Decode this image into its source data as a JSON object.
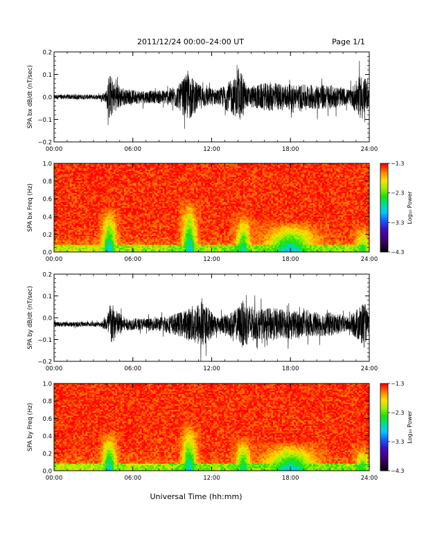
{
  "header": {
    "title": "2011/12/24  00:00–24:00 UT",
    "page": "Page 1/1"
  },
  "xlabel": "Universal Time (hh:mm)",
  "colors": {
    "trace": "#000000",
    "axis": "#000000",
    "colormap": [
      "#000000",
      "#2a0046",
      "#46008a",
      "#3c10c8",
      "#1060ff",
      "#00c8ff",
      "#00e090",
      "#20e000",
      "#a0f000",
      "#ffe000",
      "#ff8000",
      "#ff0000"
    ]
  },
  "chart_data": [
    {
      "type": "line",
      "ylabel": "SPA bx dB/dt (nT/sec)",
      "xlim": [
        0,
        24
      ],
      "x_ticks": [
        "00:00",
        "06:00",
        "12:00",
        "18:00",
        "24:00"
      ],
      "ylim": [
        -0.2,
        0.2
      ],
      "y_ticks": [
        "0.2",
        "0.1",
        "0.0",
        "−0.1",
        "−0.2"
      ],
      "y_tick_values": [
        0.2,
        0.1,
        0.0,
        -0.1,
        -0.2
      ],
      "baseline": 0.0,
      "activity": [
        {
          "t": 0,
          "amp": 0.02
        },
        {
          "t": 3.5,
          "amp": 0.02
        },
        {
          "t": 4.0,
          "amp": 0.05
        },
        {
          "t": 4.2,
          "amp": 0.2
        },
        {
          "t": 4.6,
          "amp": 0.12
        },
        {
          "t": 5.5,
          "amp": 0.06
        },
        {
          "t": 7.5,
          "amp": 0.05
        },
        {
          "t": 8.5,
          "amp": 0.06
        },
        {
          "t": 9.5,
          "amp": 0.1
        },
        {
          "t": 10.2,
          "amp": 0.2
        },
        {
          "t": 11.0,
          "amp": 0.1
        },
        {
          "t": 12.5,
          "amp": 0.06
        },
        {
          "t": 14.3,
          "amp": 0.2
        },
        {
          "t": 14.7,
          "amp": 0.08
        },
        {
          "t": 15.5,
          "amp": 0.1
        },
        {
          "t": 16.5,
          "amp": 0.12
        },
        {
          "t": 18.0,
          "amp": 0.1
        },
        {
          "t": 19.5,
          "amp": 0.1
        },
        {
          "t": 21.0,
          "amp": 0.1
        },
        {
          "t": 22.5,
          "amp": 0.06
        },
        {
          "t": 23.5,
          "amp": 0.2
        },
        {
          "t": 24.0,
          "amp": 0.06
        }
      ]
    },
    {
      "type": "heatmap",
      "ylabel": "SPA bx Freq (Hz)",
      "xlim": [
        0,
        24
      ],
      "x_ticks": [
        "00:00",
        "06:00",
        "12:00",
        "18:00",
        "24:00"
      ],
      "ylim": [
        0.0,
        1.0
      ],
      "y_ticks": [
        "1.0",
        "0.8",
        "0.6",
        "0.4",
        "0.2",
        "0.0"
      ],
      "y_tick_values": [
        1.0,
        0.8,
        0.6,
        0.4,
        0.2,
        0.0
      ],
      "colorbar": {
        "label": "Log₁₀ Power",
        "range": [
          -4.3,
          -1.3
        ],
        "ticks": [
          "−1.3",
          "−2.3",
          "−3.3",
          "−4.3"
        ],
        "tick_values": [
          -1.3,
          -2.3,
          -3.3,
          -4.3
        ]
      },
      "features": [
        {
          "t": 4.2,
          "fmax": 0.5,
          "level": -2.6
        },
        {
          "t": 10.3,
          "fmax": 0.6,
          "level": -2.6
        },
        {
          "t": 14.4,
          "fmax": 0.45,
          "level": -2.8
        },
        {
          "t": 18.0,
          "fmax": 0.35,
          "level": -2.6
        },
        {
          "t": 23.5,
          "fmax": 0.3,
          "level": -3.0
        }
      ]
    },
    {
      "type": "line",
      "ylabel": "SPA by dB/dt (nT/sec)",
      "xlim": [
        0,
        24
      ],
      "x_ticks": [
        "00:00",
        "06:00",
        "12:00",
        "18:00",
        "24:00"
      ],
      "ylim": [
        -0.2,
        0.2
      ],
      "y_ticks": [
        "0.2",
        "0.1",
        "0.0",
        "−0.1",
        "−0.2"
      ],
      "y_tick_values": [
        0.2,
        0.1,
        0.0,
        -0.1,
        -0.2
      ],
      "baseline": -0.03,
      "activity": [
        {
          "t": 0,
          "amp": 0.02
        },
        {
          "t": 3.5,
          "amp": 0.02
        },
        {
          "t": 4.0,
          "amp": 0.06
        },
        {
          "t": 4.3,
          "amp": 0.2
        },
        {
          "t": 4.7,
          "amp": 0.12
        },
        {
          "t": 5.5,
          "amp": 0.05
        },
        {
          "t": 7.5,
          "amp": 0.05
        },
        {
          "t": 9.0,
          "amp": 0.08
        },
        {
          "t": 10.0,
          "amp": 0.12
        },
        {
          "t": 11.2,
          "amp": 0.2
        },
        {
          "t": 12.5,
          "amp": 0.06
        },
        {
          "t": 13.8,
          "amp": 0.12
        },
        {
          "t": 14.4,
          "amp": 0.2
        },
        {
          "t": 15.5,
          "amp": 0.12
        },
        {
          "t": 16.5,
          "amp": 0.14
        },
        {
          "t": 18.0,
          "amp": 0.12
        },
        {
          "t": 19.5,
          "amp": 0.1
        },
        {
          "t": 21.0,
          "amp": 0.1
        },
        {
          "t": 22.5,
          "amp": 0.06
        },
        {
          "t": 23.6,
          "amp": 0.2
        },
        {
          "t": 24.0,
          "amp": 0.06
        }
      ]
    },
    {
      "type": "heatmap",
      "ylabel": "SPA by Freq (Hz)",
      "xlim": [
        0,
        24
      ],
      "x_ticks": [
        "00:00",
        "06:00",
        "12:00",
        "18:00",
        "24:00"
      ],
      "ylim": [
        0.0,
        1.0
      ],
      "y_ticks": [
        "1.0",
        "0.8",
        "0.6",
        "0.4",
        "0.2",
        "0.0"
      ],
      "y_tick_values": [
        1.0,
        0.8,
        0.6,
        0.4,
        0.2,
        0.0
      ],
      "colorbar": {
        "label": "Log₁₀ Power",
        "range": [
          -4.3,
          -1.3
        ],
        "ticks": [
          "−1.3",
          "−2.3",
          "−3.3",
          "−4.3"
        ],
        "tick_values": [
          -1.3,
          -2.3,
          -3.3,
          -4.3
        ]
      },
      "features": [
        {
          "t": 4.2,
          "fmax": 0.45,
          "level": -2.6
        },
        {
          "t": 10.3,
          "fmax": 0.55,
          "level": -2.6
        },
        {
          "t": 14.4,
          "fmax": 0.4,
          "level": -2.8
        },
        {
          "t": 18.0,
          "fmax": 0.33,
          "level": -2.6
        },
        {
          "t": 23.5,
          "fmax": 0.3,
          "level": -3.0
        }
      ]
    }
  ]
}
